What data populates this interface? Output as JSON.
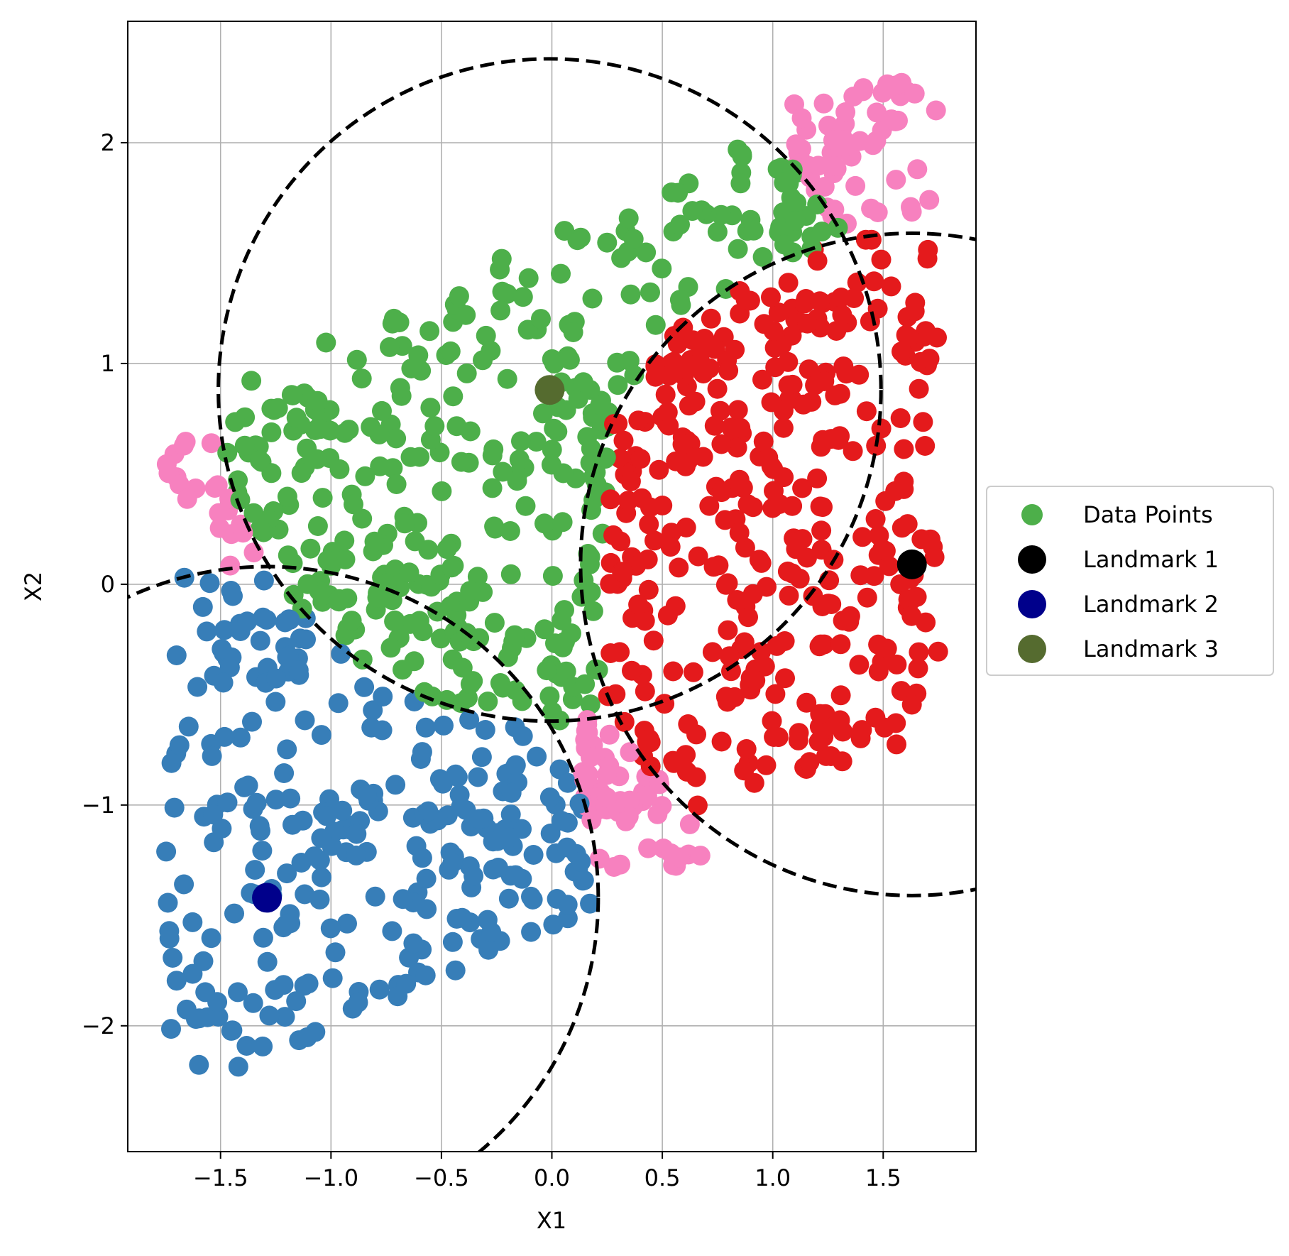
{
  "chart_data": {
    "type": "scatter",
    "title": "",
    "xlabel": "X1",
    "ylabel": "X2",
    "xlim": [
      -1.92,
      1.92
    ],
    "ylim": [
      -2.57,
      2.55
    ],
    "grid": true,
    "xticks": [
      -1.5,
      -1.0,
      -0.5,
      0.0,
      0.5,
      1.0,
      1.5
    ],
    "xtick_labels": [
      "−1.5",
      "−1.0",
      "−0.5",
      "0.0",
      "0.5",
      "1.0",
      "1.5"
    ],
    "yticks": [
      -2,
      -1,
      0,
      1,
      2
    ],
    "ytick_labels": [
      "−2",
      "−1",
      "0",
      "1",
      "2"
    ],
    "legend_position": "center-right-outside",
    "legend": [
      {
        "label": "Data Points",
        "color": "#4daf4a"
      },
      {
        "label": "Landmark 1",
        "color": "#000000"
      },
      {
        "label": "Landmark 2",
        "color": "#00008b"
      },
      {
        "label": "Landmark 3",
        "color": "#556b2f"
      }
    ],
    "clusters": [
      {
        "name": "",
        "color": "#e41a1c",
        "region": {
          "x": [
            0.13,
            1.75
          ],
          "y": [
            -1.1,
            1.6
          ]
        },
        "count": 310
      },
      {
        "name": "",
        "color": "#377eb8",
        "region": {
          "x": [
            -1.75,
            0.22
          ],
          "y": [
            -2.35,
            0.05
          ]
        },
        "count": 330
      },
      {
        "name": "",
        "color": "#4daf4a",
        "region": {
          "x": [
            -1.5,
            1.35
          ],
          "y": [
            -0.6,
            1.95
          ]
        },
        "count": 300
      },
      {
        "name": "",
        "color": "#f781bf",
        "region": "top-right x[1.05,1.75] y[1.6,2.3]; left x[-1.75,-1.3] y[0.05,0.7]; middle x[0.1,0.7] y[-1.3,-0.65]",
        "count": 110
      }
    ],
    "landmarks": [
      {
        "label": "Landmark 1",
        "x": 1.63,
        "y": 0.09,
        "color": "#000000"
      },
      {
        "label": "Landmark 2",
        "x": -1.29,
        "y": -1.42,
        "color": "#00008b"
      },
      {
        "label": "Landmark 3",
        "x": -0.01,
        "y": 0.88,
        "color": "#556b2f"
      }
    ],
    "circles": [
      {
        "center_landmark": "Landmark 1",
        "cx": 1.63,
        "cy": 0.09,
        "radius": 1.5,
        "style": "dashed",
        "color": "#000000"
      },
      {
        "center_landmark": "Landmark 2",
        "cx": -1.29,
        "cy": -1.42,
        "radius": 1.5,
        "style": "dashed",
        "color": "#000000"
      },
      {
        "center_landmark": "Landmark 3",
        "cx": -0.01,
        "cy": 0.88,
        "radius": 1.5,
        "style": "dashed",
        "color": "#000000"
      }
    ]
  }
}
